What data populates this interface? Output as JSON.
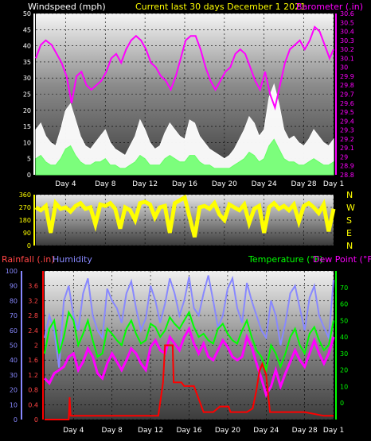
{
  "chart_data": [
    {
      "type": "line",
      "title": "Current last 30 days December 1 2021",
      "left_label": "Windspeed (mph)",
      "right_label": "Barometer (.in)",
      "x_ticks": [
        "Day 4",
        "Day 8",
        "Day 12",
        "Day 16",
        "Day 20",
        "Day 24",
        "Day 28",
        "Day 1"
      ],
      "x_range_days": [
        1,
        31
      ],
      "left_axis": {
        "ticks": [
          "0",
          "5",
          "10",
          "15",
          "20",
          "25",
          "30",
          "35",
          "40",
          "45",
          "50"
        ],
        "ylim": [
          0,
          50
        ]
      },
      "right_axis": {
        "ticks": [
          "28.8",
          "28.9",
          "29",
          "29.1",
          "29.2",
          "29.3",
          "29.4",
          "29.5",
          "29.6",
          "29.7",
          "29.8",
          "29.9",
          "30",
          "30.1",
          "30.2",
          "30.3",
          "30.4",
          "30.5",
          "30.6"
        ],
        "ylim": [
          28.8,
          30.6
        ]
      },
      "series": [
        {
          "name": "Barometer (.in)",
          "axis": "right",
          "color": "#ff00ff",
          "x": [
            1,
            1.5,
            2,
            2.6,
            3.1,
            3.6,
            4.1,
            4.6,
            5.1,
            5.6,
            6.1,
            6.6,
            7.1,
            7.6,
            8.1,
            8.6,
            9.1,
            9.6,
            10.1,
            10.6,
            11.1,
            11.6,
            12.1,
            12.6,
            13.1,
            13.6,
            14.1,
            14.6,
            15.1,
            15.6,
            16.1,
            16.6,
            17.1,
            17.6,
            18.1,
            18.6,
            19.1,
            19.6,
            20.1,
            20.6,
            21.1,
            21.6,
            22.1,
            22.6,
            23.1,
            23.6,
            24.1,
            24.6,
            25.1,
            25.6,
            26.1,
            26.6,
            27.1,
            27.6,
            28.1,
            28.6,
            29.1,
            29.6,
            30.1,
            30.6,
            31
          ],
          "y": [
            30.1,
            30.25,
            30.3,
            30.25,
            30.15,
            30.05,
            29.9,
            29.6,
            29.9,
            29.95,
            29.8,
            29.75,
            29.8,
            29.85,
            29.95,
            30.1,
            30.15,
            30.05,
            30.2,
            30.3,
            30.35,
            30.3,
            30.2,
            30.05,
            30.0,
            29.9,
            29.85,
            29.75,
            29.9,
            30.1,
            30.3,
            30.35,
            30.35,
            30.2,
            30.0,
            29.85,
            29.75,
            29.85,
            29.95,
            30.0,
            30.15,
            30.2,
            30.15,
            30.0,
            29.85,
            29.75,
            29.95,
            29.7,
            29.55,
            29.8,
            30.05,
            30.2,
            30.25,
            30.3,
            30.2,
            30.3,
            30.45,
            30.4,
            30.25,
            30.1,
            30.2
          ]
        },
        {
          "name": "Wind Gust (mph)",
          "axis": "left",
          "color": "#ffffff",
          "x": [
            1,
            1.5,
            2,
            2.5,
            3,
            3.5,
            4,
            4.5,
            5,
            5.5,
            6,
            6.5,
            7,
            7.5,
            8,
            8.5,
            9,
            9.5,
            10,
            10.5,
            11,
            11.5,
            12,
            12.5,
            13,
            13.5,
            14,
            14.5,
            15,
            15.5,
            16,
            16.5,
            17,
            17.5,
            18,
            18.5,
            19,
            19.5,
            20,
            20.5,
            21,
            21.5,
            22,
            22.5,
            23,
            23.5,
            24,
            24.5,
            25,
            25.5,
            26,
            26.5,
            27,
            27.5,
            28,
            28.5,
            29,
            29.5,
            30,
            30.5,
            31
          ],
          "y": [
            14,
            16,
            12,
            10,
            9,
            14,
            20,
            22,
            17,
            12,
            9,
            8,
            10,
            12,
            14,
            10,
            8,
            7,
            6,
            9,
            12,
            17,
            14,
            10,
            8,
            9,
            13,
            16,
            14,
            12,
            11,
            17,
            16,
            12,
            10,
            8,
            7,
            6,
            5,
            6,
            8,
            11,
            14,
            18,
            16,
            12,
            14,
            24,
            28,
            22,
            14,
            11,
            12,
            10,
            9,
            11,
            14,
            12,
            10,
            9,
            11
          ]
        },
        {
          "name": "Wind Speed (mph)",
          "axis": "left",
          "color": "#66ff66",
          "x": [
            1,
            1.5,
            2,
            2.5,
            3,
            3.5,
            4,
            4.5,
            5,
            5.5,
            6,
            6.5,
            7,
            7.5,
            8,
            8.5,
            9,
            9.5,
            10,
            10.5,
            11,
            11.5,
            12,
            12.5,
            13,
            13.5,
            14,
            14.5,
            15,
            15.5,
            16,
            16.5,
            17,
            17.5,
            18,
            18.5,
            19,
            19.5,
            20,
            20.5,
            21,
            21.5,
            22,
            22.5,
            23,
            23.5,
            24,
            24.5,
            25,
            25.5,
            26,
            26.5,
            27,
            27.5,
            28,
            28.5,
            29,
            29.5,
            30,
            30.5,
            31
          ],
          "y": [
            5,
            6,
            4,
            3,
            3,
            5,
            8,
            9,
            6,
            4,
            3,
            3,
            4,
            4,
            5,
            3,
            3,
            2,
            2,
            3,
            4,
            6,
            5,
            3,
            3,
            3,
            5,
            6,
            5,
            4,
            4,
            6,
            6,
            4,
            3,
            3,
            2,
            2,
            2,
            2,
            3,
            4,
            5,
            7,
            6,
            4,
            5,
            9,
            11,
            8,
            5,
            4,
            4,
            3,
            3,
            4,
            5,
            4,
            3,
            3,
            4
          ]
        }
      ]
    },
    {
      "type": "scatter",
      "title": "",
      "x_ticks": [
        "Day 4",
        "Day 8",
        "Day 12",
        "Day 16",
        "Day 20",
        "Day 24",
        "Day 28",
        "Day 1"
      ],
      "x_range_days": [
        1,
        31
      ],
      "left_axis": {
        "ticks": [
          "0",
          "90",
          "180",
          "270",
          "360"
        ],
        "ylim": [
          0,
          360
        ]
      },
      "right_labels": [
        "N",
        "W",
        "S",
        "E",
        "N"
      ],
      "series": [
        {
          "name": "Wind Direction",
          "color": "#ffff00",
          "x": [
            1,
            1.5,
            2,
            2.5,
            3,
            3.5,
            4,
            4.5,
            5,
            5.5,
            6,
            6.5,
            7,
            7.5,
            8,
            8.5,
            9,
            9.5,
            10,
            10.5,
            11,
            11.5,
            12,
            12.5,
            13,
            13.5,
            14,
            14.5,
            15,
            15.5,
            16,
            16.5,
            17,
            17.5,
            18,
            18.5,
            19,
            19.5,
            20,
            20.5,
            21,
            21.5,
            22,
            22.5,
            23,
            23.5,
            24,
            24.5,
            25,
            25.5,
            26,
            26.5,
            27,
            27.5,
            28,
            28.5,
            29,
            29.5,
            30,
            30.5,
            31
          ],
          "y": [
            270,
            250,
            280,
            90,
            300,
            260,
            270,
            240,
            280,
            300,
            260,
            270,
            150,
            290,
            280,
            300,
            260,
            120,
            270,
            250,
            180,
            300,
            310,
            290,
            200,
            270,
            280,
            90,
            300,
            320,
            340,
            200,
            60,
            270,
            280,
            260,
            300,
            220,
            180,
            290,
            270,
            250,
            290,
            160,
            260,
            280,
            90,
            270,
            300,
            260,
            280,
            250,
            290,
            170,
            280,
            300,
            270,
            230,
            290,
            100,
            260
          ]
        }
      ]
    },
    {
      "type": "line",
      "title": "",
      "left_labels": [
        "Rainfall (.in)",
        "Humidity"
      ],
      "right_labels": [
        "Temperature (°F)",
        "Dew Point (°F)"
      ],
      "x_ticks": [
        "Day 4",
        "Day 8",
        "Day 12",
        "Day 16",
        "Day 20",
        "Day 24",
        "Day 28",
        "Day 1"
      ],
      "x_range_days": [
        1,
        31
      ],
      "humidity_axis": {
        "ticks": [
          "0",
          "10",
          "20",
          "30",
          "40",
          "50",
          "60",
          "70",
          "80",
          "90",
          "100"
        ],
        "ylim": [
          0,
          100
        ]
      },
      "rain_axis": {
        "ticks": [
          "0",
          "0.4",
          "0.8",
          "1.2",
          "1.6",
          "2",
          "2.4",
          "2.8",
          "3.2",
          "3.6"
        ],
        "ylim": [
          0,
          4
        ]
      },
      "temp_axis": {
        "ticks": [
          "0",
          "10",
          "20",
          "30",
          "40",
          "50",
          "60",
          "70"
        ],
        "ylim": [
          -10,
          80
        ]
      },
      "series": [
        {
          "name": "Humidity",
          "axis": "humidity",
          "color": "#8888ff",
          "x": [
            1,
            1.5,
            2,
            2.5,
            3,
            3.5,
            4,
            4.5,
            5,
            5.5,
            6,
            6.5,
            7,
            7.5,
            8,
            8.5,
            9,
            9.5,
            10,
            10.5,
            11,
            11.5,
            12,
            12.5,
            13,
            13.5,
            14,
            14.5,
            15,
            15.5,
            16,
            16.5,
            17,
            17.5,
            18,
            18.5,
            19,
            19.5,
            20,
            20.5,
            21,
            21.5,
            22,
            22.5,
            23,
            23.5,
            24,
            24.5,
            25,
            25.5,
            26,
            26.5,
            27,
            27.5,
            28,
            28.5,
            29,
            29.5,
            30,
            30.5,
            31
          ],
          "y": [
            55,
            70,
            60,
            35,
            80,
            90,
            70,
            60,
            85,
            95,
            70,
            60,
            55,
            88,
            80,
            75,
            65,
            85,
            93,
            75,
            60,
            68,
            90,
            80,
            65,
            78,
            95,
            85,
            70,
            80,
            96,
            75,
            70,
            85,
            97,
            80,
            62,
            70,
            88,
            95,
            75,
            65,
            92,
            80,
            70,
            60,
            55,
            80,
            70,
            50,
            65,
            85,
            90,
            75,
            60,
            82,
            90,
            70,
            62,
            55,
            94
          ]
        },
        {
          "name": "Temperature (°F)",
          "axis": "temp",
          "color": "#00ff00",
          "x": [
            1,
            1.5,
            2,
            2.5,
            3,
            3.5,
            4,
            4.5,
            5,
            5.5,
            6,
            6.5,
            7,
            7.5,
            8,
            8.5,
            9,
            9.5,
            10,
            10.5,
            11,
            11.5,
            12,
            12.5,
            13,
            13.5,
            14,
            14.5,
            15,
            15.5,
            16,
            16.5,
            17,
            17.5,
            18,
            18.5,
            19,
            19.5,
            20,
            20.5,
            21,
            21.5,
            22,
            22.5,
            23,
            23.5,
            24,
            24.5,
            25,
            25.5,
            26,
            26.5,
            27,
            27.5,
            28,
            28.5,
            29,
            29.5,
            30,
            30.5,
            31
          ],
          "y": [
            30,
            45,
            50,
            30,
            40,
            55,
            50,
            35,
            42,
            50,
            38,
            28,
            30,
            45,
            42,
            38,
            35,
            45,
            50,
            42,
            36,
            38,
            48,
            46,
            40,
            44,
            52,
            48,
            45,
            50,
            55,
            46,
            40,
            42,
            38,
            36,
            45,
            48,
            42,
            38,
            36,
            44,
            50,
            40,
            32,
            28,
            20,
            35,
            30,
            22,
            30,
            40,
            45,
            35,
            30,
            42,
            46,
            38,
            32,
            35,
            50
          ]
        },
        {
          "name": "Dew Point (°F)",
          "axis": "temp",
          "color": "#ff00ff",
          "x": [
            1,
            1.5,
            2,
            2.5,
            3,
            3.5,
            4,
            4.5,
            5,
            5.5,
            6,
            6.5,
            7,
            7.5,
            8,
            8.5,
            9,
            9.5,
            10,
            10.5,
            11,
            11.5,
            12,
            12.5,
            13,
            13.5,
            14,
            14.5,
            15,
            15.5,
            16,
            16.5,
            17,
            17.5,
            18,
            18.5,
            19,
            19.5,
            20,
            20.5,
            21,
            21.5,
            22,
            22.5,
            23,
            23.5,
            24,
            24.5,
            25,
            25.5,
            26,
            26.5,
            27,
            27.5,
            28,
            28.5,
            29,
            29.5,
            30,
            30.5,
            31
          ],
          "y": [
            15,
            12,
            18,
            20,
            22,
            28,
            30,
            20,
            25,
            33,
            28,
            18,
            15,
            24,
            30,
            25,
            20,
            26,
            33,
            30,
            24,
            20,
            34,
            38,
            32,
            30,
            40,
            36,
            32,
            40,
            45,
            36,
            30,
            36,
            28,
            26,
            32,
            38,
            34,
            28,
            26,
            28,
            40,
            34,
            24,
            15,
            5,
            10,
            20,
            10,
            18,
            25,
            32,
            26,
            22,
            30,
            38,
            30,
            24,
            30,
            40
          ]
        },
        {
          "name": "Rainfall (.in)",
          "axis": "rain",
          "color": "#ff0000",
          "x": [
            1,
            3.5,
            3.6,
            3.7,
            4.5,
            12.2,
            12.8,
            13.3,
            13.5,
            14.3,
            14.4,
            14.6,
            15.2,
            15.5,
            16.5,
            17.5,
            18.5,
            19.2,
            19.4,
            20.1,
            20.3,
            22.0,
            22.6,
            23.0,
            23.3,
            23.6,
            24.0,
            24.4,
            25.0,
            28.0,
            30.0,
            30.4,
            31
          ],
          "y": [
            0,
            0,
            0.6,
            0.1,
            0.1,
            0.1,
            0.1,
            1.0,
            2.0,
            2.0,
            1.0,
            1.0,
            1.0,
            0.9,
            0.9,
            0.2,
            0.2,
            0.35,
            0.35,
            0.35,
            0.2,
            0.2,
            0.3,
            0.8,
            1.3,
            1.5,
            1.2,
            0.2,
            0.2,
            0.2,
            0.1,
            0.1,
            0.1
          ]
        }
      ]
    }
  ],
  "labels": {
    "windspeed": "Windspeed (mph)",
    "title": "Current last 30 days December 1 2021",
    "barometer": "Barometer (.in)",
    "rainfall": "Rainfall (.in)",
    "humidity": "Humidity",
    "temperature": "Temperature (°F)",
    "dewpoint": "Dew Point (°F)"
  }
}
